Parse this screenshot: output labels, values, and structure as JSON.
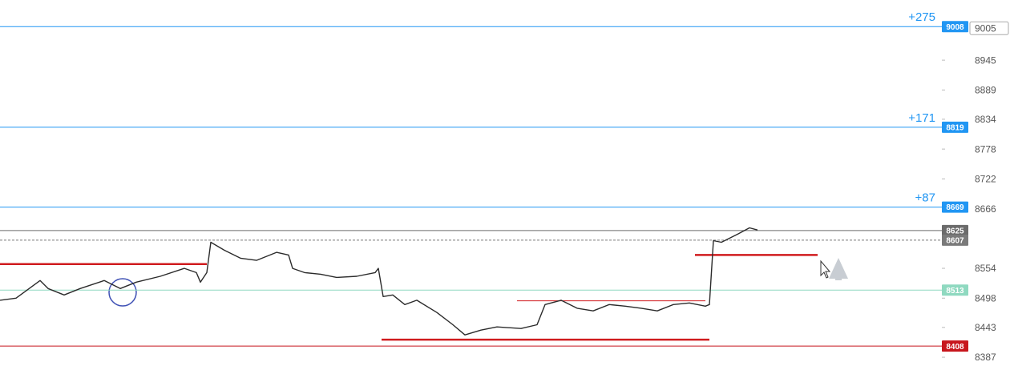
{
  "chart_data": {
    "type": "line",
    "x": [
      0,
      2,
      5,
      6,
      8,
      10,
      13,
      15,
      17,
      20,
      23,
      24.5,
      25,
      25.8,
      26.3,
      28,
      30,
      32,
      34.5,
      36,
      36.5,
      38,
      40,
      42,
      44.5,
      46.8,
      47.2,
      47.8,
      49,
      50.5,
      52,
      54.5,
      56.5,
      58,
      60,
      62,
      65,
      67,
      68,
      70,
      72,
      74,
      76,
      78,
      80,
      82,
      84,
      86,
      88,
      88.5,
      89,
      90,
      92,
      93.5,
      94.5
    ],
    "series": [
      {
        "color": "#2b2b2b",
        "values": [
          8494,
          8498,
          8531,
          8516,
          8504,
          8516,
          8531,
          8516,
          8528,
          8539,
          8554,
          8546,
          8528,
          8546,
          8603,
          8588,
          8573,
          8569,
          8584,
          8579,
          8554,
          8546,
          8543,
          8537,
          8539,
          8546,
          8554,
          8501,
          8504,
          8486,
          8494,
          8471,
          8448,
          8429,
          8438,
          8444,
          8441,
          8448,
          8486,
          8494,
          8479,
          8474,
          8486,
          8483,
          8479,
          8474,
          8486,
          8489,
          8483,
          8486,
          8606,
          8603,
          8618,
          8630,
          8626
        ]
      }
    ],
    "xlim": [
      0,
      117.5
    ],
    "ylim": [
      8348,
      9058
    ],
    "yticks": [
      9005,
      8945,
      8889,
      8834,
      8778,
      8722,
      8666,
      8554,
      8498,
      8443,
      8387
    ],
    "levels": [
      {
        "value": 9008,
        "annotation": "+275",
        "color": "#2196f3"
      },
      {
        "value": 8819,
        "annotation": "+171",
        "color": "#2196f3"
      },
      {
        "value": 8669,
        "annotation": "+87",
        "color": "#2196f3"
      },
      {
        "value": 8625,
        "color": "#6b6b6b"
      },
      {
        "value": 8607,
        "color": "#7a7a7a",
        "dashed": true
      },
      {
        "value": 8513,
        "color": "#8fd9c0"
      },
      {
        "value": 8408,
        "color": "#c8161d"
      }
    ],
    "support_lines": [
      {
        "value": 8562,
        "from": 0,
        "to": 25.8
      },
      {
        "value": 8420,
        "from": 47.6,
        "to": 88.5
      },
      {
        "value": 8579,
        "from": 86.7,
        "to": 102
      },
      {
        "value": 8493,
        "from": 64.5,
        "to": 88
      }
    ]
  }
}
